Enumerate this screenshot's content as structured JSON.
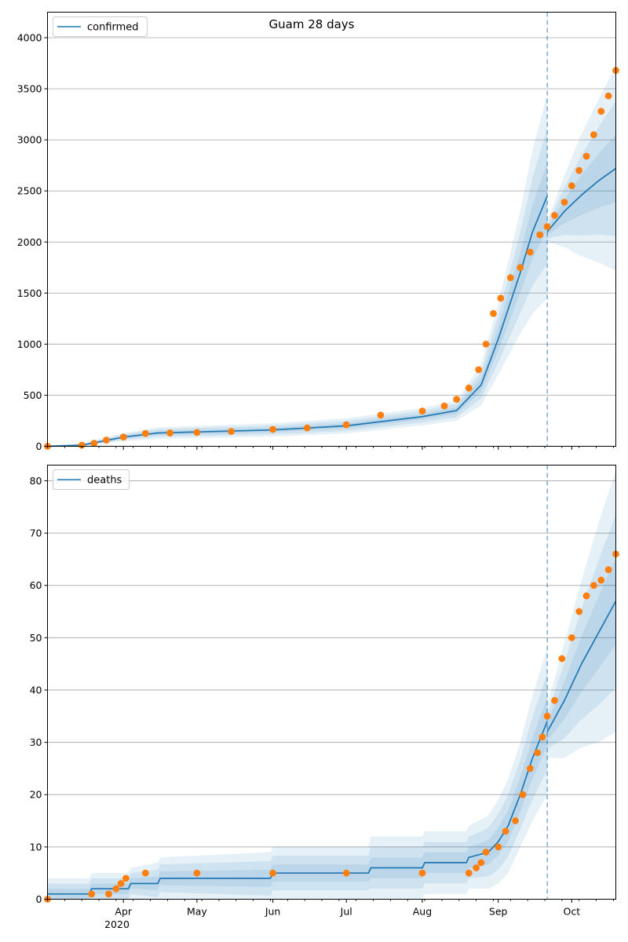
{
  "chart_data": [
    {
      "type": "line",
      "title": "Guam 28 days",
      "legend": {
        "label": "confirmed",
        "placement": "top-left"
      },
      "ylim": [
        0,
        4250
      ],
      "yticks": [
        0,
        500,
        1000,
        1500,
        2000,
        2500,
        3000,
        3500,
        4000
      ],
      "grid": "y",
      "forecast_start": "2020-09-21",
      "model_fit": {
        "x": [
          "2020-03-01",
          "2020-03-15",
          "2020-04-01",
          "2020-04-15",
          "2020-05-01",
          "2020-06-01",
          "2020-07-01",
          "2020-08-01",
          "2020-08-15",
          "2020-08-25",
          "2020-09-01",
          "2020-09-10",
          "2020-09-15",
          "2020-09-21"
        ],
        "y": [
          0,
          10,
          90,
          130,
          140,
          160,
          200,
          290,
          350,
          600,
          1050,
          1700,
          2100,
          2450
        ],
        "band_half_width": [
          10,
          20,
          40,
          55,
          60,
          65,
          75,
          85,
          100,
          200,
          350,
          600,
          800,
          1000
        ]
      },
      "forecast": {
        "x": [
          "2020-09-21",
          "2020-09-28",
          "2020-10-05",
          "2020-10-12",
          "2020-10-19"
        ],
        "y": [
          2100,
          2300,
          2460,
          2600,
          2720
        ],
        "band_half_width": [
          100,
          350,
          600,
          800,
          1000
        ]
      },
      "observed": {
        "x": [
          "2020-03-01",
          "2020-03-15",
          "2020-03-20",
          "2020-03-25",
          "2020-04-01",
          "2020-04-10",
          "2020-04-20",
          "2020-05-01",
          "2020-05-15",
          "2020-06-01",
          "2020-06-15",
          "2020-07-01",
          "2020-07-15",
          "2020-08-01",
          "2020-08-10",
          "2020-08-15",
          "2020-08-20",
          "2020-08-24",
          "2020-08-27",
          "2020-08-30",
          "2020-09-02",
          "2020-09-06",
          "2020-09-10",
          "2020-09-14",
          "2020-09-18",
          "2020-09-21",
          "2020-09-24",
          "2020-09-28",
          "2020-10-01",
          "2020-10-04",
          "2020-10-07",
          "2020-10-10",
          "2020-10-13",
          "2020-10-16",
          "2020-10-19"
        ],
        "y": [
          0,
          10,
          30,
          60,
          90,
          125,
          130,
          135,
          145,
          165,
          180,
          210,
          305,
          345,
          395,
          460,
          570,
          750,
          1000,
          1300,
          1450,
          1650,
          1750,
          1900,
          2070,
          2150,
          2260,
          2390,
          2550,
          2700,
          2840,
          3050,
          3280,
          3430,
          3680
        ]
      }
    },
    {
      "type": "line",
      "legend": {
        "label": "deaths",
        "placement": "top-left"
      },
      "ylim": [
        0,
        83
      ],
      "yticks": [
        0,
        10,
        20,
        30,
        40,
        50,
        60,
        70,
        80
      ],
      "xticks": [
        "Apr",
        "May",
        "Jun",
        "Jul",
        "Aug",
        "Sep",
        "Oct"
      ],
      "xtick_dates": [
        "2020-04-01",
        "2020-05-01",
        "2020-06-01",
        "2020-07-01",
        "2020-08-01",
        "2020-09-01",
        "2020-10-01"
      ],
      "year_label": "2020",
      "grid": "y",
      "forecast_start": "2020-09-21",
      "model_fit": {
        "x": [
          "2020-03-01",
          "2020-03-18",
          "2020-03-19",
          "2020-04-03",
          "2020-04-04",
          "2020-04-15",
          "2020-04-16",
          "2020-05-31",
          "2020-06-01",
          "2020-07-10",
          "2020-07-11",
          "2020-08-01",
          "2020-08-02",
          "2020-08-19",
          "2020-08-20",
          "2020-08-28",
          "2020-09-01",
          "2020-09-05",
          "2020-09-10",
          "2020-09-15",
          "2020-09-21"
        ],
        "y": [
          1,
          1,
          2,
          2,
          3,
          3,
          4,
          4,
          5,
          5,
          6,
          6,
          7,
          7,
          8,
          9,
          11,
          14,
          20,
          27,
          34
        ],
        "band_half_width": [
          3,
          3,
          3,
          3,
          3,
          4,
          4,
          5,
          5,
          5,
          6,
          6,
          6,
          6,
          6,
          7,
          8,
          9,
          10,
          12,
          14
        ]
      },
      "forecast": {
        "x": [
          "2020-09-21",
          "2020-09-28",
          "2020-10-05",
          "2020-10-12",
          "2020-10-19"
        ],
        "y": [
          32,
          38,
          45,
          51,
          57
        ],
        "band_half_width": [
          5,
          11,
          16,
          21,
          25
        ]
      },
      "observed": {
        "x": [
          "2020-03-01",
          "2020-03-19",
          "2020-03-26",
          "2020-03-29",
          "2020-03-31",
          "2020-04-02",
          "2020-04-10",
          "2020-05-01",
          "2020-06-01",
          "2020-07-01",
          "2020-08-01",
          "2020-08-20",
          "2020-08-23",
          "2020-08-25",
          "2020-08-27",
          "2020-09-01",
          "2020-09-04",
          "2020-09-08",
          "2020-09-11",
          "2020-09-14",
          "2020-09-17",
          "2020-09-19",
          "2020-09-21",
          "2020-09-24",
          "2020-09-27",
          "2020-10-01",
          "2020-10-04",
          "2020-10-07",
          "2020-10-10",
          "2020-10-13",
          "2020-10-16",
          "2020-10-19"
        ],
        "y": [
          0,
          1,
          1,
          2,
          3,
          4,
          5,
          5,
          5,
          5,
          5,
          5,
          6,
          7,
          9,
          10,
          13,
          15,
          20,
          25,
          28,
          31,
          35,
          38,
          46,
          50,
          55,
          58,
          60,
          61,
          63,
          66
        ]
      }
    }
  ],
  "colors": {
    "line": "#1f77b4",
    "observed": "#ff7f0e",
    "band": "#1f77b4",
    "grid": "#b0b0b0",
    "forecast_line": "#1f77b4"
  }
}
